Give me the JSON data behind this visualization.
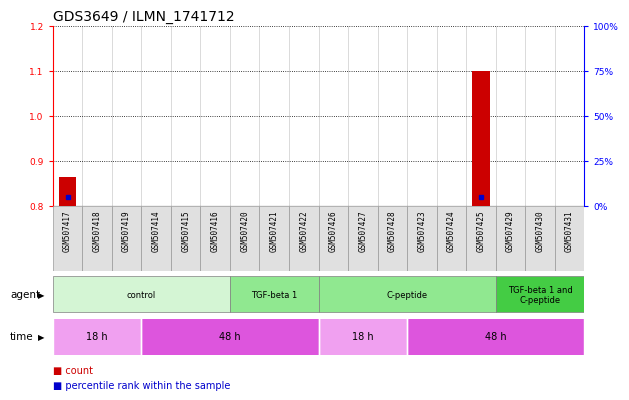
{
  "title": "GDS3649 / ILMN_1741712",
  "samples": [
    "GSM507417",
    "GSM507418",
    "GSM507419",
    "GSM507414",
    "GSM507415",
    "GSM507416",
    "GSM507420",
    "GSM507421",
    "GSM507422",
    "GSM507426",
    "GSM507427",
    "GSM507428",
    "GSM507423",
    "GSM507424",
    "GSM507425",
    "GSM507429",
    "GSM507430",
    "GSM507431"
  ],
  "count_values": [
    0.865,
    0.8,
    0.8,
    0.8,
    0.8,
    0.8,
    0.8,
    0.8,
    0.8,
    0.8,
    0.8,
    0.8,
    0.8,
    0.8,
    1.1,
    0.8,
    0.8,
    0.8
  ],
  "percentile_values": [
    5,
    0,
    0,
    0,
    0,
    0,
    0,
    0,
    0,
    0,
    0,
    0,
    0,
    0,
    5,
    0,
    0,
    0
  ],
  "ylim_left": [
    0.8,
    1.2
  ],
  "ylim_right": [
    0,
    100
  ],
  "yticks_left": [
    0.8,
    0.9,
    1.0,
    1.1,
    1.2
  ],
  "yticks_right": [
    0,
    25,
    50,
    75,
    100
  ],
  "ytick_labels_right": [
    "0%",
    "25%",
    "50%",
    "75%",
    "100%"
  ],
  "agent_groups": [
    {
      "label": "control",
      "start": 0,
      "end": 6,
      "color": "#d4f5d4"
    },
    {
      "label": "TGF-beta 1",
      "start": 6,
      "end": 9,
      "color": "#90e890"
    },
    {
      "label": "C-peptide",
      "start": 9,
      "end": 15,
      "color": "#90e890"
    },
    {
      "label": "TGF-beta 1 and\nC-peptide",
      "start": 15,
      "end": 18,
      "color": "#44cc44"
    }
  ],
  "time_groups": [
    {
      "label": "18 h",
      "start": 0,
      "end": 3,
      "color": "#f0a0f0"
    },
    {
      "label": "48 h",
      "start": 3,
      "end": 9,
      "color": "#dd55dd"
    },
    {
      "label": "18 h",
      "start": 9,
      "end": 12,
      "color": "#f0a0f0"
    },
    {
      "label": "48 h",
      "start": 12,
      "end": 18,
      "color": "#dd55dd"
    }
  ],
  "bar_color": "#cc0000",
  "dot_color": "#0000cc",
  "grid_color": "#000000",
  "title_fontsize": 10,
  "tick_fontsize": 6.5,
  "label_fontsize": 7.5,
  "sample_col_bg": "#e0e0e0",
  "sample_col_border": "#999999"
}
